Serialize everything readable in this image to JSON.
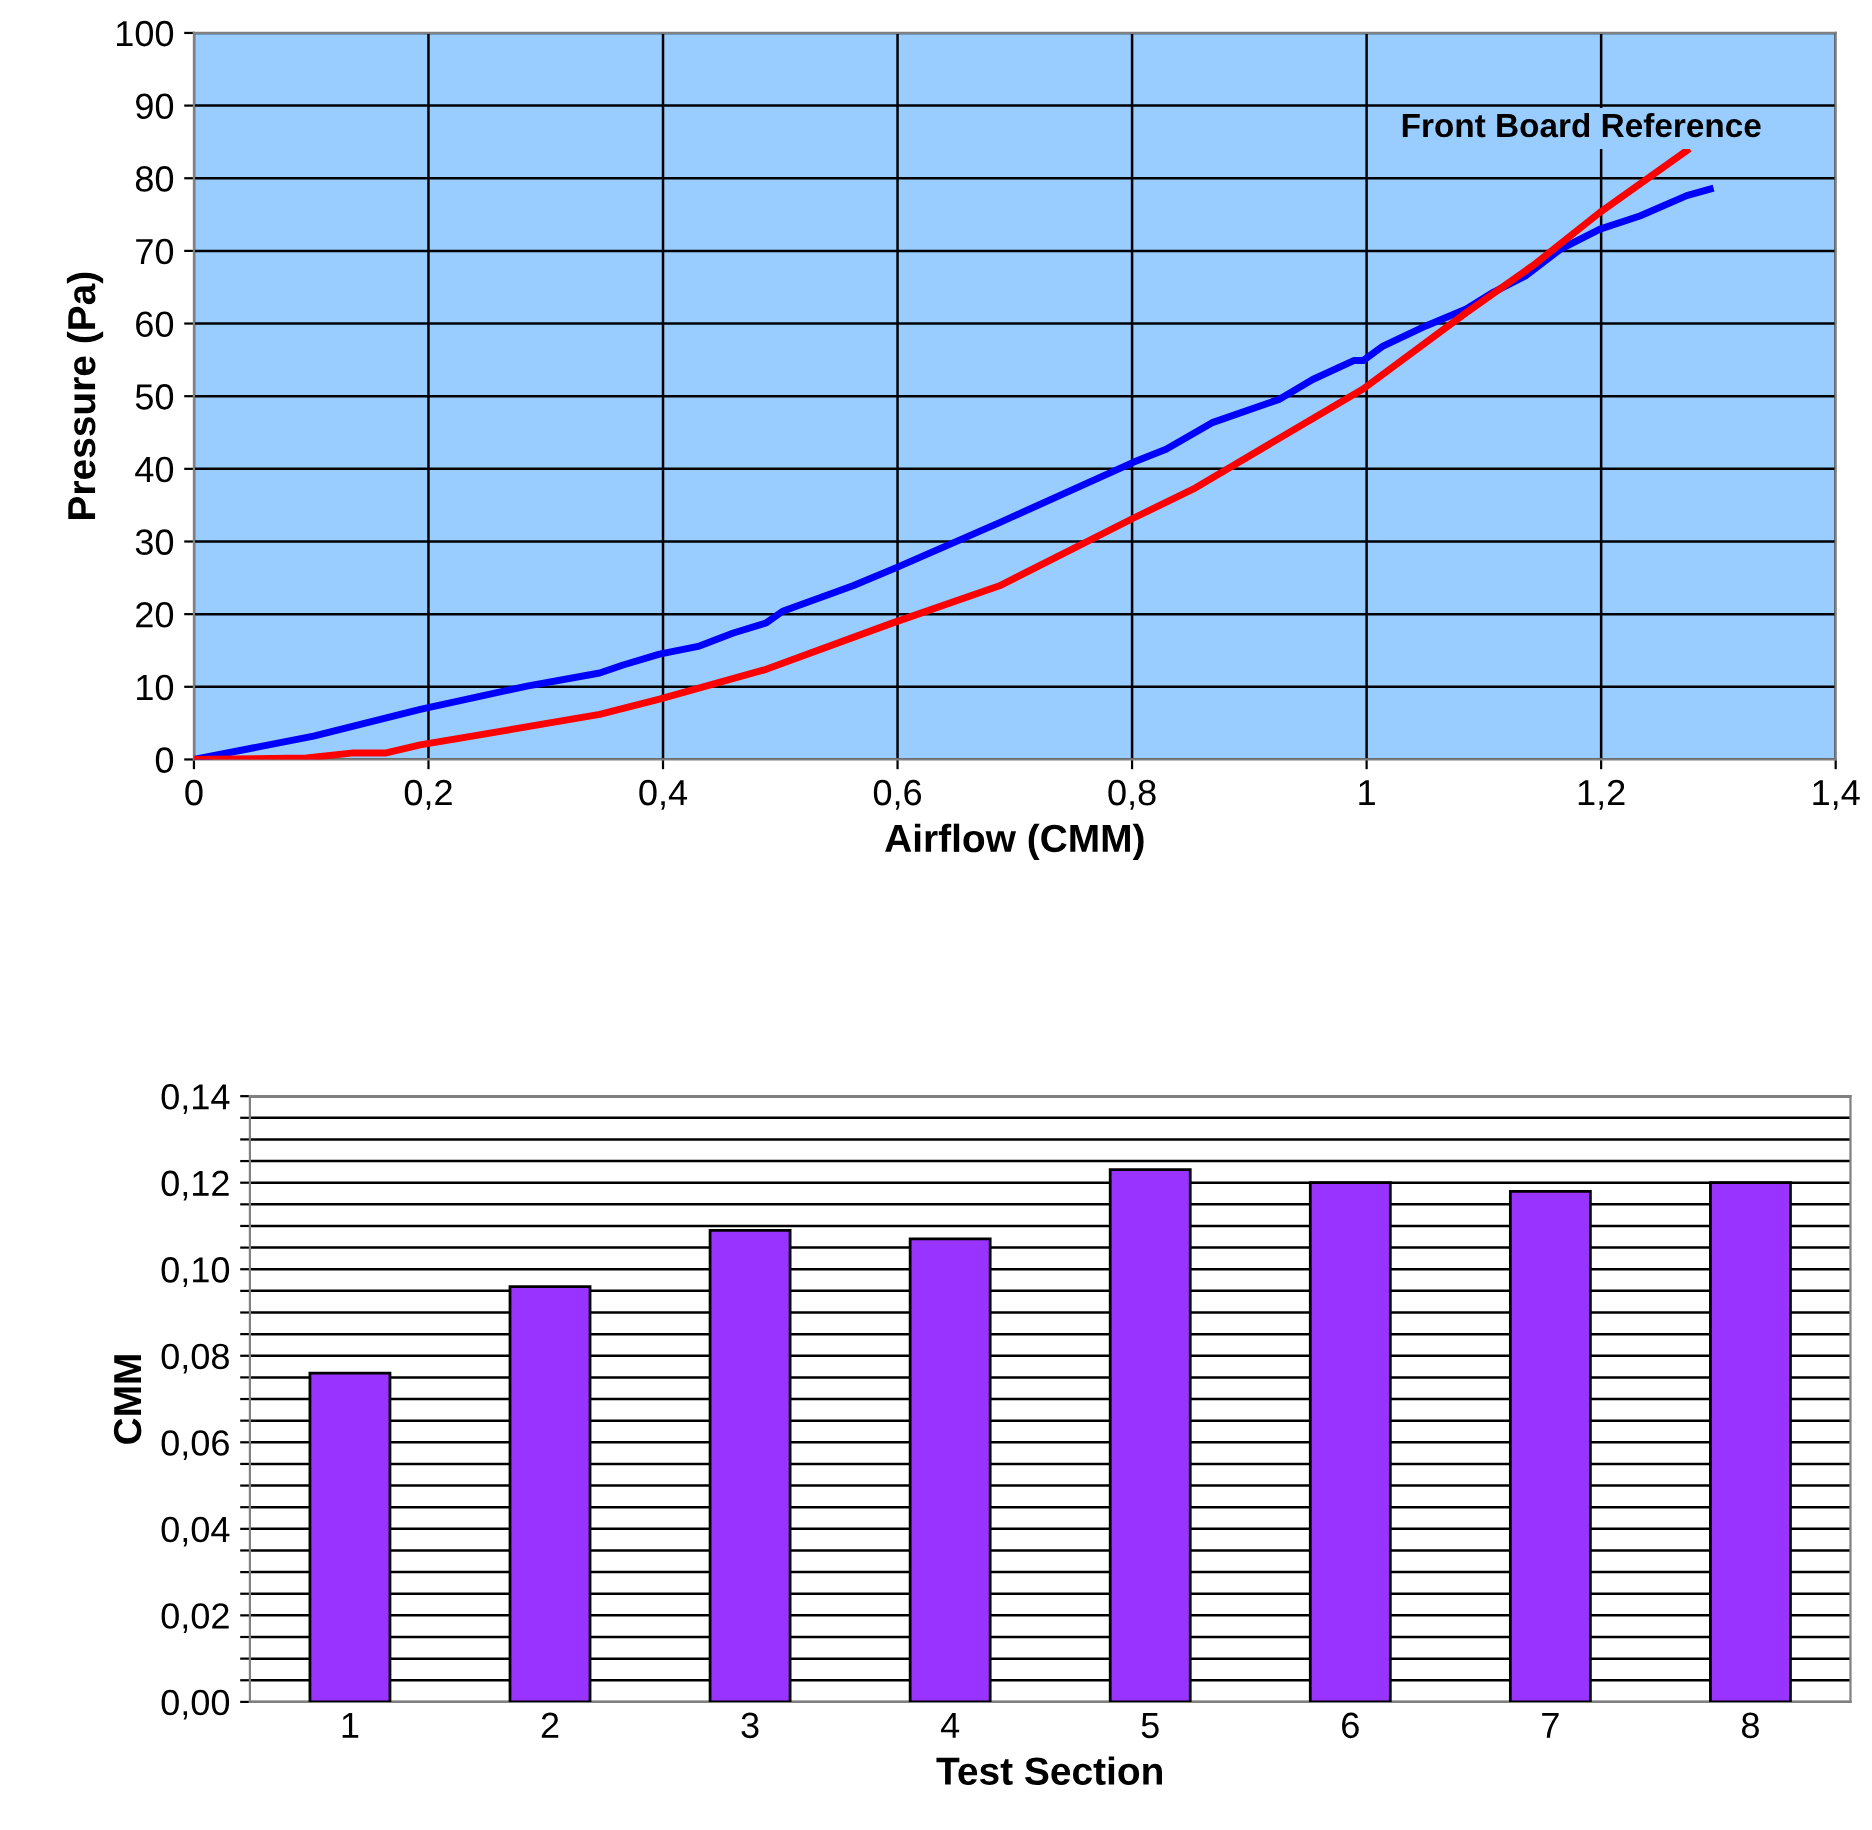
{
  "chart_data": [
    {
      "type": "line",
      "xlabel": "Airflow (CMM)",
      "ylabel": "Pressure (Pa)",
      "xlim": [
        0,
        1.4
      ],
      "ylim": [
        0,
        100
      ],
      "xticks": [
        0,
        {
          "value": 0.2,
          "label": "0,2"
        },
        {
          "value": 0.4,
          "label": "0,4"
        },
        {
          "value": 0.6,
          "label": "0,6"
        },
        {
          "value": 0.8,
          "label": "0,8"
        },
        1,
        {
          "value": 1.2,
          "label": "1,2"
        },
        {
          "value": 1.4,
          "label": "1,4"
        }
      ],
      "yticks": [
        0,
        10,
        20,
        30,
        40,
        50,
        60,
        70,
        80,
        90,
        100
      ],
      "grid": true,
      "legend": false,
      "marker": "none",
      "line_style": "solid",
      "series": [
        {
          "color": "#0000ff",
          "x": [
            0,
            0.102,
            0.193,
            0.284,
            0.346,
            0.366,
            0.397,
            0.431,
            0.46,
            0.488,
            0.502,
            0.562,
            0.599,
            0.687,
            0.801,
            0.829,
            0.869,
            0.926,
            0.954,
            0.989,
            0.997,
            1.014,
            1.051,
            1.085,
            1.108,
            1.136,
            1.165,
            1.199,
            1.233,
            1.273,
            1.293
          ],
          "values": [
            0,
            3.2,
            6.9,
            10.1,
            11.9,
            13.0,
            14.5,
            15.6,
            17.4,
            18.8,
            20.4,
            23.9,
            26.4,
            32.6,
            40.9,
            42.7,
            46.4,
            49.6,
            52.3,
            54.9,
            54.9,
            56.9,
            59.7,
            62.0,
            64.3,
            66.6,
            70.2,
            73.0,
            74.8,
            77.6,
            78.5
          ]
        },
        {
          "name": "Front Board Reference",
          "color": "#ff0000",
          "x": [
            0,
            0.096,
            0.136,
            0.164,
            0.193,
            0.346,
            0.397,
            0.488,
            0.596,
            0.687,
            0.801,
            0.852,
            0.997,
            1.085,
            1.142,
            1.199,
            1.273
          ],
          "values": [
            0,
            0.2,
            0.9,
            0.9,
            2.0,
            6.2,
            8.3,
            12.4,
            18.8,
            23.9,
            33.2,
            37.2,
            51.0,
            61.5,
            68.0,
            75.3,
            83.8
          ]
        }
      ]
    },
    {
      "type": "bar",
      "xlabel": "Test Section",
      "ylabel": "CMM",
      "categories": [
        "1",
        "2",
        "3",
        "4",
        "5",
        "6",
        "7",
        "8"
      ],
      "values": [
        0.076,
        0.096,
        0.109,
        0.107,
        0.123,
        0.12,
        0.118,
        0.12
      ],
      "color": "#9933ff",
      "ylim": [
        0,
        0.14
      ],
      "yticks": [
        {
          "value": 0,
          "label": "0,00"
        },
        {
          "value": 0.005,
          "label": null
        },
        {
          "value": 0.01,
          "label": null
        },
        {
          "value": 0.015,
          "label": null
        },
        {
          "value": 0.02,
          "label": "0,02"
        },
        {
          "value": 0.025,
          "label": null
        },
        {
          "value": 0.03,
          "label": null
        },
        {
          "value": 0.035,
          "label": null
        },
        {
          "value": 0.04,
          "label": "0,04"
        },
        {
          "value": 0.045,
          "label": null
        },
        {
          "value": 0.05,
          "label": null
        },
        {
          "value": 0.055,
          "label": null
        },
        {
          "value": 0.06,
          "label": "0,06"
        },
        {
          "value": 0.065,
          "label": null
        },
        {
          "value": 0.07,
          "label": null
        },
        {
          "value": 0.075,
          "label": null
        },
        {
          "value": 0.08,
          "label": "0,08"
        },
        {
          "value": 0.085,
          "label": null
        },
        {
          "value": 0.09,
          "label": null
        },
        {
          "value": 0.095,
          "label": null
        },
        {
          "value": 0.1,
          "label": "0,10"
        },
        {
          "value": 0.105,
          "label": null
        },
        {
          "value": 0.11,
          "label": null
        },
        {
          "value": 0.115,
          "label": null
        },
        {
          "value": 0.12,
          "label": "0,12"
        },
        {
          "value": 0.125,
          "label": null
        },
        {
          "value": 0.13,
          "label": null
        },
        {
          "value": 0.135,
          "label": null
        },
        {
          "value": 0.14,
          "label": "0,14"
        }
      ],
      "grid": "y",
      "legend": false
    }
  ]
}
